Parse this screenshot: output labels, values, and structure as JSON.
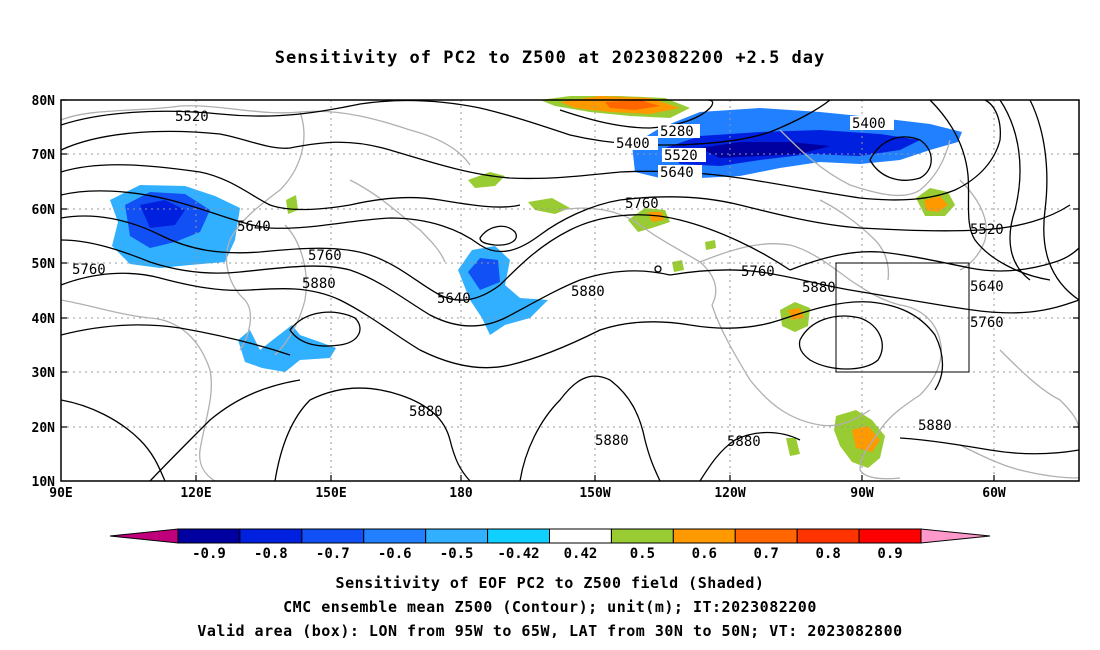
{
  "title": "Sensitivity of PC2 to Z500 at 2023082200 +2.5 day",
  "lat_labels": [
    "80N",
    "70N",
    "60N",
    "50N",
    "40N",
    "30N",
    "20N",
    "10N"
  ],
  "lon_labels": [
    "90E",
    "120E",
    "150E",
    "180",
    "150W",
    "120W",
    "90W",
    "60W"
  ],
  "contours": {
    "c5520_a": "5520",
    "c5280": "5280",
    "c5400_a": "5400",
    "c5520_b": "5520",
    "c5640_a": "5640",
    "c5400_b": "5400",
    "c5520_c": "5520",
    "c5640_b": "5640",
    "c5760_a": "5760",
    "c5760_b": "5760",
    "c5880_a": "5880",
    "c5640_c": "5640",
    "c5760_c": "5760",
    "c5880_b": "5880",
    "c5760_d": "5760",
    "c5880_c": "5880",
    "c5640_d": "5640",
    "c5760_e": "5760",
    "c5880_d": "5880",
    "c5880_e": "5880",
    "c5880_f": "5880",
    "c5880_g": "5880"
  },
  "colorbar": {
    "labels": [
      "-0.9",
      "-0.8",
      "-0.7",
      "-0.6",
      "-0.5",
      "-0.42",
      "0.42",
      "0.5",
      "0.6",
      "0.7",
      "0.8",
      "0.9"
    ],
    "colors": [
      "#0000a0",
      "#0020e0",
      "#1050f5",
      "#2080ff",
      "#30b0ff",
      "#10d0ff",
      "#ffffff",
      "#99cc33",
      "#ff9900",
      "#ff6600",
      "#ff3300",
      "#ff0000"
    ],
    "under_color": "#c0007a",
    "over_color": "#ff99cc"
  },
  "captions": {
    "line1": "Sensitivity of EOF PC2 to Z500 field (Shaded)",
    "line2": "CMC ensemble mean Z500 (Contour); unit(m); IT:2023082200",
    "line3": "Valid area (box): LON from 95W to 65W, LAT from 30N to 50N; VT: 2023082800"
  }
}
